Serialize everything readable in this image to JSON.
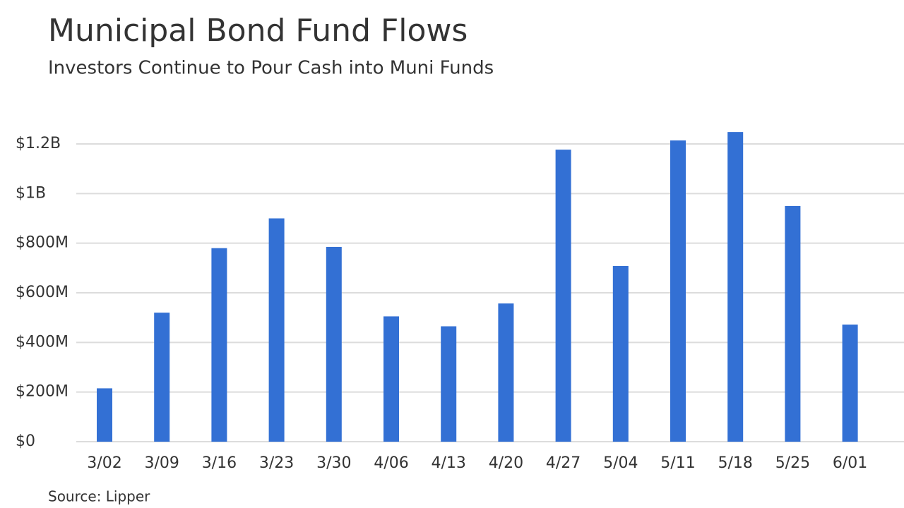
{
  "chart_data": {
    "type": "bar",
    "title": "Municipal Bond Fund Flows",
    "subtitle": "Investors Continue to Pour Cash into Muni Funds",
    "source": "Source: Lipper",
    "categories": [
      "3/02",
      "3/09",
      "3/16",
      "3/23",
      "3/30",
      "4/06",
      "4/13",
      "4/20",
      "4/27",
      "5/04",
      "5/11",
      "5/18",
      "5/25",
      "6/01"
    ],
    "values": [
      215000000,
      520000000,
      780000000,
      900000000,
      785000000,
      505000000,
      465000000,
      557000000,
      1177000000,
      708000000,
      1214000000,
      1248000000,
      950000000,
      472000000
    ],
    "color": "#3370d4",
    "ylim": [
      0,
      1300000000
    ],
    "yticks": [
      {
        "value": 0,
        "label": "$0"
      },
      {
        "value": 200000000,
        "label": "$200M"
      },
      {
        "value": 400000000,
        "label": "$400M"
      },
      {
        "value": 600000000,
        "label": "$600M"
      },
      {
        "value": 800000000,
        "label": "$800M"
      },
      {
        "value": 1000000000,
        "label": "$1B"
      },
      {
        "value": 1200000000,
        "label": "$1.2B"
      }
    ],
    "grid": true
  }
}
